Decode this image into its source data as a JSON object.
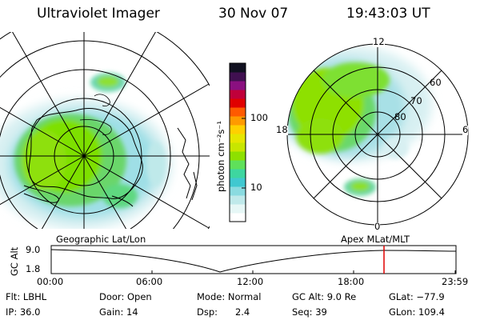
{
  "header": {
    "instrument": "Ultraviolet Imager",
    "date": "30 Nov 07",
    "time": "19:43:03 UT"
  },
  "colorbar": {
    "unit_label": "photon cm⁻²s⁻¹",
    "tick_100": "100",
    "tick_10": "10",
    "colors": [
      "#ffffff",
      "#e6f7f6",
      "#bfe9ea",
      "#8adbe0",
      "#40c8d0",
      "#3ed6a0",
      "#5fe05a",
      "#8ee000",
      "#c8e600",
      "#e6e600",
      "#ffd000",
      "#ff9a00",
      "#ff5a00",
      "#e00000",
      "#c0003a",
      "#8a1080",
      "#401050",
      "#101020"
    ]
  },
  "polar_plot": {
    "mlt_labels": {
      "top": "12",
      "left": "18",
      "right": "6",
      "bottom": "0"
    },
    "lat_labels": [
      "60",
      "70",
      "80"
    ]
  },
  "timeline": {
    "left_labels": {
      "axis": "GC Alt",
      "top": "9.0",
      "bottom": "1.8"
    },
    "left_title": "Geographic Lat/Lon",
    "right_title": "Apex MLat/MLT",
    "ticks": [
      "00:00",
      "06:00",
      "12:00",
      "18:00",
      "23:59"
    ],
    "marker_color": "#e00000"
  },
  "footer": [
    [
      "Flt: LBHL",
      "Door: Open",
      "Mode: Normal",
      "GC Alt: 9.0 Re",
      "GLat: −77.9"
    ],
    [
      "IP: 36.0",
      "Gain: 14",
      "Dsp:      2.4",
      "Seq: 39",
      "GLon: 109.4"
    ]
  ]
}
